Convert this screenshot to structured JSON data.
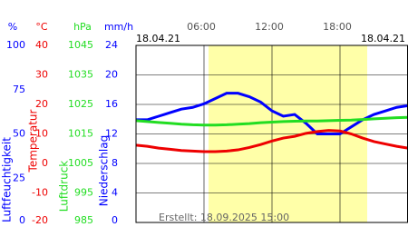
{
  "chart_data": {
    "type": "line",
    "date_left": "18.04.21",
    "date_right": "18.04.21",
    "footer": "Erstellt: 18.09.2025 15:00",
    "xlim": [
      0,
      24
    ],
    "xticks": [
      {
        "value": 6,
        "label": "06:00"
      },
      {
        "value": 12,
        "label": "12:00"
      },
      {
        "value": 18,
        "label": "18:00"
      }
    ],
    "daylight": [
      6.4,
      20.4
    ],
    "daylight_color": "#ffffa8",
    "grid": true,
    "x": [
      0,
      1,
      2,
      3,
      4,
      5,
      6,
      7,
      8,
      9,
      10,
      11,
      12,
      13,
      14,
      15,
      16,
      17,
      18,
      19,
      20,
      21,
      22,
      23,
      24
    ],
    "axes": [
      {
        "name": "Luftfeuchtigkeit",
        "unit": "%",
        "color": "#0000ff",
        "ylim": [
          0,
          100
        ],
        "yticks": [
          0,
          25,
          50,
          75,
          100
        ],
        "values": [
          58,
          58,
          60,
          62,
          64,
          65,
          67,
          70,
          73,
          73,
          71,
          68,
          63,
          60,
          61,
          56,
          50,
          50,
          50,
          54,
          58,
          61,
          63,
          65,
          66
        ]
      },
      {
        "name": "Temperatur",
        "unit": "°C",
        "color": "#ee0000",
        "ylim": [
          -20,
          40
        ],
        "yticks": [
          -20,
          -10,
          0,
          10,
          20,
          30,
          40
        ],
        "values": [
          6.2,
          5.8,
          5.2,
          4.8,
          4.4,
          4.2,
          4,
          4,
          4.2,
          4.6,
          5.4,
          6.4,
          7.6,
          8.6,
          9.2,
          10.2,
          10.8,
          11.2,
          11,
          10,
          8.6,
          7.4,
          6.6,
          5.8,
          5.2
        ]
      },
      {
        "name": "Luftdruck",
        "unit": "hPa",
        "color": "#22dd22",
        "ylim": [
          985,
          1045
        ],
        "yticks": [
          985,
          995,
          1005,
          1015,
          1025,
          1035,
          1045
        ],
        "values": [
          1019.5,
          1019.2,
          1018.9,
          1018.6,
          1018.3,
          1018.1,
          1018,
          1018,
          1018.1,
          1018.3,
          1018.5,
          1018.8,
          1019,
          1019.2,
          1019.3,
          1019.4,
          1019.4,
          1019.5,
          1019.6,
          1019.7,
          1019.9,
          1020.1,
          1020.3,
          1020.5,
          1020.6
        ]
      },
      {
        "name": "Niederschlag",
        "unit": "mm/h",
        "color": "#0000ff",
        "ylim": [
          0,
          24
        ],
        "yticks": [
          0,
          4,
          8,
          12,
          16,
          20,
          24
        ]
      }
    ]
  }
}
